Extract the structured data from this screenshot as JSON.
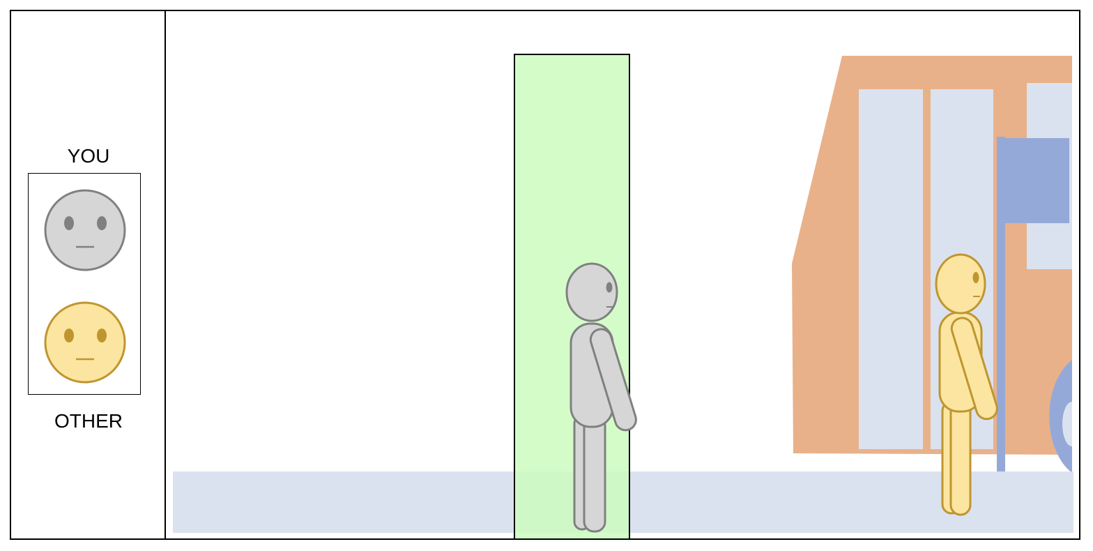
{
  "legend": {
    "you_label": "YOU",
    "other_label": "OTHER"
  },
  "colors": {
    "you_fill": "#d6d6d6",
    "you_stroke": "#808080",
    "other_fill": "#fbe5a0",
    "other_stroke": "#bf9530",
    "highlight_zone": "#ccfcc0",
    "sidewalk": "#dbe2ef",
    "bus_body": "#e9b189",
    "bus_window": "#dbe2ef",
    "bus_stop_sign": "#95a9d8"
  },
  "scene": {
    "description_icons": [
      "person-you",
      "person-other",
      "bus",
      "bus-stop-sign",
      "highlight-zone",
      "sidewalk"
    ]
  }
}
